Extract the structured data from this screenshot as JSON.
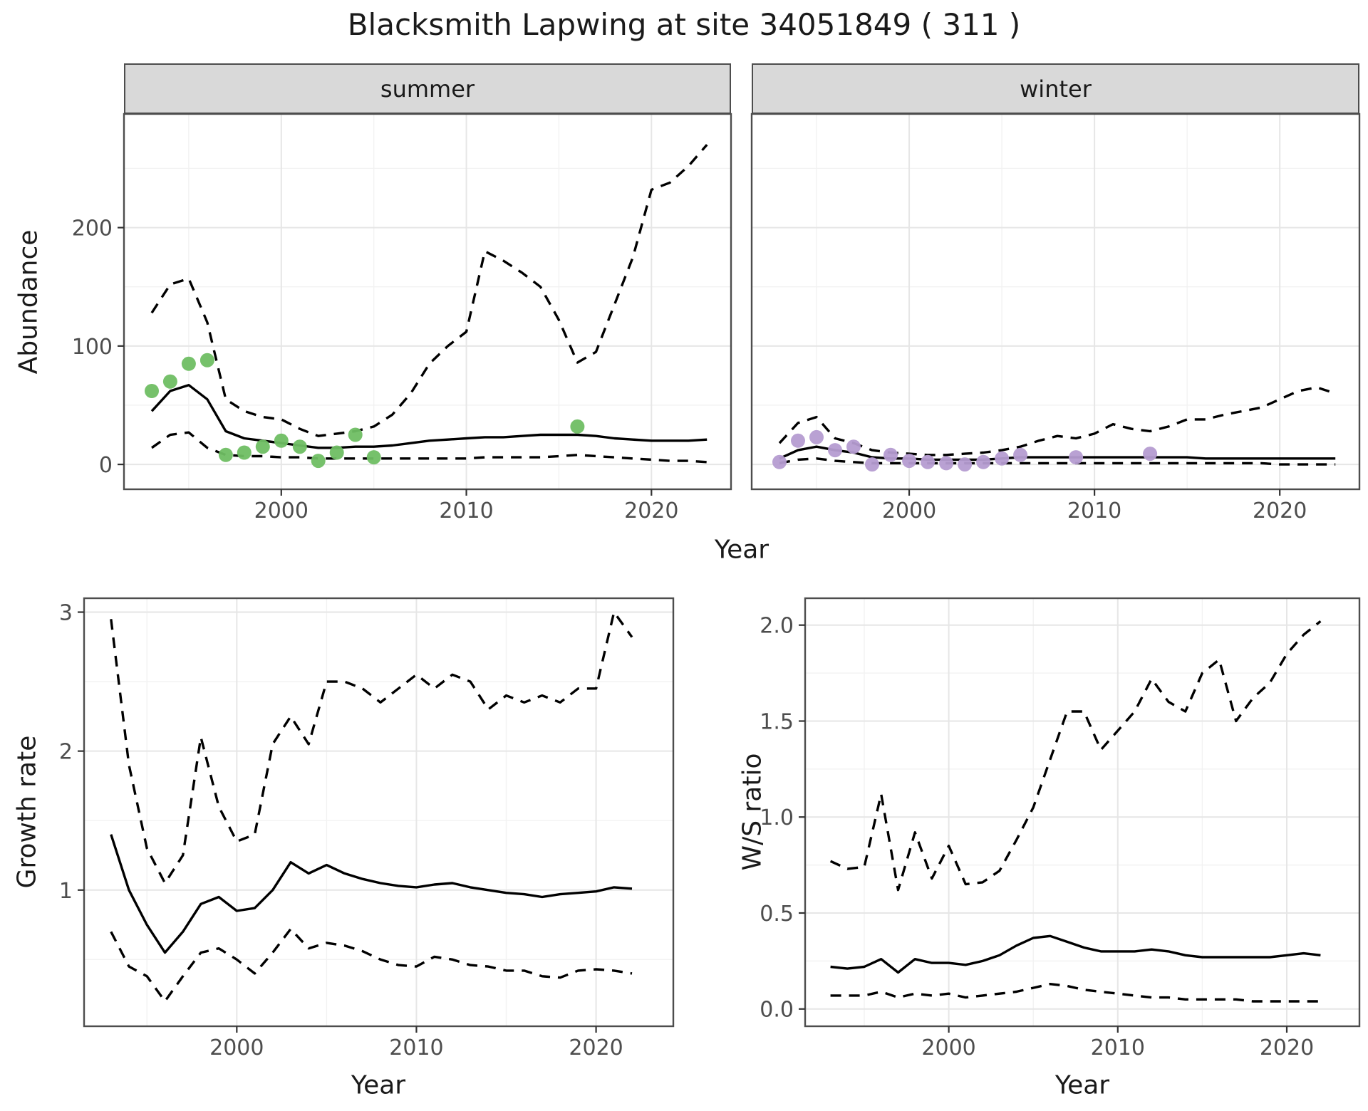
{
  "title": "Blacksmith Lapwing at site 34051849 ( 311 )",
  "labels": {
    "abundance": "Abundance",
    "growth_rate": "Growth rate",
    "ws_ratio": "W/S ratio",
    "year": "Year"
  },
  "colors": {
    "line": "#000000",
    "summer_points": "#6fbe63",
    "winter_points": "#b59cd1",
    "grid_major": "#e6e6e6",
    "grid_minor": "#f2f2f2",
    "panel_border": "#4d4d4d",
    "strip_bg": "#d9d9d9",
    "tick_text": "#4d4d4d"
  },
  "chart_data": [
    {
      "id": "abundance-summer",
      "type": "line+scatter",
      "facet_label": "summer",
      "xlabel": "Year",
      "ylabel": "Abundance",
      "xlim": [
        1991.5,
        2024.3
      ],
      "ylim": [
        -21,
        296
      ],
      "x_ticks": [
        2000,
        2010,
        2020
      ],
      "x_tick_labels": [
        "2000",
        "2010",
        "2020"
      ],
      "x_minor": [
        1995,
        2005,
        2015
      ],
      "y_ticks": [
        0,
        100,
        200
      ],
      "y_tick_labels": [
        "0",
        "100",
        "200"
      ],
      "y_minor": [
        50,
        150,
        250
      ],
      "years": [
        1993,
        1994,
        1995,
        1996,
        1997,
        1998,
        1999,
        2000,
        2001,
        2002,
        2003,
        2004,
        2005,
        2006,
        2007,
        2008,
        2009,
        2010,
        2011,
        2012,
        2013,
        2014,
        2015,
        2016,
        2017,
        2018,
        2019,
        2020,
        2021,
        2022,
        2023
      ],
      "series": [
        {
          "name": "upper-ci",
          "style": "dashed",
          "values": [
            128,
            152,
            157,
            120,
            55,
            45,
            40,
            38,
            30,
            24,
            26,
            28,
            32,
            42,
            60,
            85,
            100,
            112,
            180,
            172,
            162,
            150,
            122,
            86,
            95,
            135,
            175,
            232,
            238,
            252,
            270
          ]
        },
        {
          "name": "mean",
          "style": "solid",
          "values": [
            45,
            62,
            67,
            55,
            28,
            22,
            20,
            18,
            16,
            14,
            14,
            15,
            15,
            16,
            18,
            20,
            21,
            22,
            23,
            23,
            24,
            25,
            25,
            25,
            24,
            22,
            21,
            20,
            20,
            20,
            21
          ]
        },
        {
          "name": "lower-ci",
          "style": "dashed",
          "values": [
            14,
            25,
            27,
            14,
            8,
            7,
            7,
            6,
            6,
            5,
            5,
            5,
            5,
            5,
            5,
            5,
            5,
            5,
            6,
            6,
            6,
            6,
            7,
            8,
            7,
            6,
            5,
            4,
            3,
            3,
            2
          ]
        }
      ],
      "points": {
        "name": "observed-counts-summer",
        "color": "#6fbe63",
        "x": [
          1993,
          1994,
          1995,
          1996,
          1997,
          1998,
          1999,
          2000,
          2001,
          2002,
          2003,
          2004,
          2005,
          2016
        ],
        "y": [
          62,
          70,
          85,
          88,
          8,
          10,
          15,
          20,
          15,
          3,
          10,
          25,
          6,
          32
        ]
      }
    },
    {
      "id": "abundance-winter",
      "type": "line+scatter",
      "facet_label": "winter",
      "xlabel": "Year",
      "ylabel": "Abundance",
      "xlim": [
        1991.5,
        2024.3
      ],
      "ylim": [
        -21,
        296
      ],
      "x_ticks": [
        2000,
        2010,
        2020
      ],
      "x_tick_labels": [
        "2000",
        "2010",
        "2020"
      ],
      "x_minor": [
        1995,
        2005,
        2015
      ],
      "y_ticks": [
        0,
        100,
        200
      ],
      "y_tick_labels": [
        "0",
        "100",
        "200"
      ],
      "y_minor": [
        50,
        150,
        250
      ],
      "years": [
        1993,
        1994,
        1995,
        1996,
        1997,
        1998,
        1999,
        2000,
        2001,
        2002,
        2003,
        2004,
        2005,
        2006,
        2007,
        2008,
        2009,
        2010,
        2011,
        2012,
        2013,
        2014,
        2015,
        2016,
        2017,
        2018,
        2019,
        2020,
        2021,
        2022,
        2023
      ],
      "series": [
        {
          "name": "upper-ci",
          "style": "dashed",
          "values": [
            18,
            35,
            40,
            22,
            18,
            12,
            10,
            9,
            8,
            8,
            9,
            10,
            12,
            15,
            20,
            24,
            22,
            26,
            34,
            30,
            28,
            32,
            38,
            38,
            42,
            45,
            48,
            55,
            62,
            65,
            60
          ]
        },
        {
          "name": "mean",
          "style": "solid",
          "values": [
            5,
            12,
            15,
            12,
            10,
            6,
            5,
            5,
            4,
            4,
            4,
            4,
            5,
            6,
            6,
            6,
            6,
            6,
            6,
            6,
            6,
            6,
            6,
            5,
            5,
            5,
            5,
            5,
            5,
            5,
            5
          ]
        },
        {
          "name": "lower-ci",
          "style": "dashed",
          "values": [
            1,
            4,
            5,
            3,
            2,
            1,
            1,
            1,
            1,
            1,
            1,
            1,
            1,
            1,
            1,
            1,
            1,
            1,
            1,
            1,
            1,
            1,
            1,
            1,
            1,
            1,
            1,
            0,
            0,
            0,
            0
          ]
        }
      ],
      "points": {
        "name": "observed-counts-winter",
        "color": "#b59cd1",
        "x": [
          1993,
          1994,
          1995,
          1996,
          1997,
          1998,
          1999,
          2000,
          2001,
          2002,
          2003,
          2004,
          2005,
          2006,
          2009,
          2013
        ],
        "y": [
          2,
          20,
          23,
          12,
          15,
          0,
          8,
          3,
          2,
          1,
          0,
          2,
          5,
          8,
          6,
          9
        ]
      }
    },
    {
      "id": "growth-rate",
      "type": "line",
      "xlabel": "Year",
      "ylabel": "Growth rate",
      "xlim": [
        1991.5,
        2024.3
      ],
      "ylim": [
        0.02,
        3.1
      ],
      "x_ticks": [
        2000,
        2010,
        2020
      ],
      "x_tick_labels": [
        "2000",
        "2010",
        "2020"
      ],
      "x_minor": [
        1995,
        2005,
        2015
      ],
      "y_ticks": [
        1,
        2,
        3
      ],
      "y_tick_labels": [
        "1",
        "2",
        "3"
      ],
      "y_minor": [
        0.5,
        1.5,
        2.5
      ],
      "years": [
        1993,
        1994,
        1995,
        1996,
        1997,
        1998,
        1999,
        2000,
        2001,
        2002,
        2003,
        2004,
        2005,
        2006,
        2007,
        2008,
        2009,
        2010,
        2011,
        2012,
        2013,
        2014,
        2015,
        2016,
        2017,
        2018,
        2019,
        2020,
        2021,
        2022
      ],
      "series": [
        {
          "name": "upper-ci",
          "style": "dashed",
          "values": [
            2.95,
            1.9,
            1.3,
            1.05,
            1.25,
            2.1,
            1.6,
            1.35,
            1.4,
            2.05,
            2.25,
            2.05,
            2.5,
            2.5,
            2.45,
            2.35,
            2.45,
            2.55,
            2.45,
            2.55,
            2.5,
            2.3,
            2.4,
            2.35,
            2.4,
            2.35,
            2.45,
            2.45,
            3.0,
            2.82
          ]
        },
        {
          "name": "mean",
          "style": "solid",
          "values": [
            1.4,
            1.0,
            0.75,
            0.55,
            0.7,
            0.9,
            0.95,
            0.85,
            0.87,
            1.0,
            1.2,
            1.12,
            1.18,
            1.12,
            1.08,
            1.05,
            1.03,
            1.02,
            1.04,
            1.05,
            1.02,
            1.0,
            0.98,
            0.97,
            0.95,
            0.97,
            0.98,
            0.99,
            1.02,
            1.01
          ]
        },
        {
          "name": "lower-ci",
          "style": "dashed",
          "values": [
            0.7,
            0.45,
            0.38,
            0.2,
            0.38,
            0.55,
            0.58,
            0.5,
            0.4,
            0.55,
            0.72,
            0.58,
            0.62,
            0.6,
            0.56,
            0.5,
            0.46,
            0.45,
            0.52,
            0.5,
            0.46,
            0.45,
            0.42,
            0.42,
            0.38,
            0.37,
            0.42,
            0.43,
            0.42,
            0.4
          ]
        }
      ]
    },
    {
      "id": "ws-ratio",
      "type": "line",
      "xlabel": "Year",
      "ylabel": "W/S ratio",
      "xlim": [
        1991.5,
        2024.3
      ],
      "ylim": [
        -0.09,
        2.14
      ],
      "x_ticks": [
        2000,
        2010,
        2020
      ],
      "x_tick_labels": [
        "2000",
        "2010",
        "2020"
      ],
      "x_minor": [
        1995,
        2005,
        2015
      ],
      "y_ticks": [
        0.0,
        0.5,
        1.0,
        1.5,
        2.0
      ],
      "y_tick_labels": [
        "0.0",
        "0.5",
        "1.0",
        "1.5",
        "2.0"
      ],
      "y_minor": [
        0.25,
        0.75,
        1.25,
        1.75
      ],
      "years": [
        1993,
        1994,
        1995,
        1996,
        1997,
        1998,
        1999,
        2000,
        2001,
        2002,
        2003,
        2004,
        2005,
        2006,
        2007,
        2008,
        2009,
        2010,
        2011,
        2012,
        2013,
        2014,
        2015,
        2016,
        2017,
        2018,
        2019,
        2020,
        2021,
        2022
      ],
      "series": [
        {
          "name": "upper-ci",
          "style": "dashed",
          "values": [
            0.77,
            0.73,
            0.74,
            1.12,
            0.62,
            0.92,
            0.68,
            0.85,
            0.65,
            0.66,
            0.72,
            0.88,
            1.05,
            1.3,
            1.55,
            1.55,
            1.35,
            1.45,
            1.55,
            1.72,
            1.6,
            1.55,
            1.75,
            1.82,
            1.5,
            1.62,
            1.7,
            1.85,
            1.95,
            2.02
          ]
        },
        {
          "name": "mean",
          "style": "solid",
          "values": [
            0.22,
            0.21,
            0.22,
            0.26,
            0.19,
            0.26,
            0.24,
            0.24,
            0.23,
            0.25,
            0.28,
            0.33,
            0.37,
            0.38,
            0.35,
            0.32,
            0.3,
            0.3,
            0.3,
            0.31,
            0.3,
            0.28,
            0.27,
            0.27,
            0.27,
            0.27,
            0.27,
            0.28,
            0.29,
            0.28
          ]
        },
        {
          "name": "lower-ci",
          "style": "dashed",
          "values": [
            0.07,
            0.07,
            0.07,
            0.09,
            0.06,
            0.08,
            0.07,
            0.08,
            0.06,
            0.07,
            0.08,
            0.09,
            0.11,
            0.13,
            0.12,
            0.1,
            0.09,
            0.08,
            0.07,
            0.06,
            0.06,
            0.05,
            0.05,
            0.05,
            0.05,
            0.04,
            0.04,
            0.04,
            0.04,
            0.04
          ]
        }
      ]
    }
  ]
}
